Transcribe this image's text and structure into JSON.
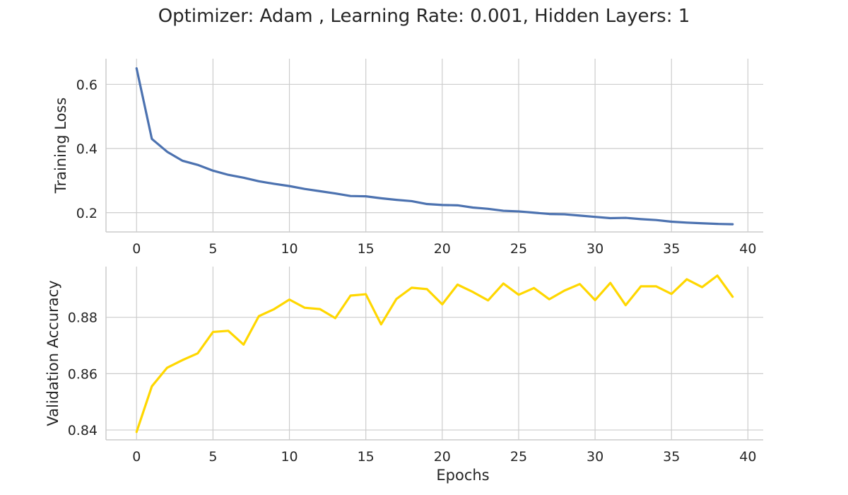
{
  "title": "Optimizer: Adam , Learning Rate: 0.001, Hidden Layers: 1",
  "colors": {
    "loss": "#4c72b0",
    "accuracy": "#ffd700"
  },
  "chart_data": [
    {
      "type": "line",
      "ylabel": "Training Loss",
      "xlabel": "",
      "xlim": [
        -2,
        41
      ],
      "ylim": [
        0.14,
        0.68
      ],
      "xticks": [
        0,
        5,
        10,
        15,
        20,
        25,
        30,
        35,
        40
      ],
      "yticks": [
        0.2,
        0.4,
        0.6
      ],
      "ytick_labels": [
        "0.2",
        "0.4",
        "0.6"
      ],
      "grid": true,
      "series": [
        {
          "x": [
            0,
            1,
            2,
            3,
            4,
            5,
            6,
            7,
            8,
            9,
            10,
            11,
            12,
            13,
            14,
            15,
            16,
            17,
            18,
            19,
            20,
            21,
            22,
            23,
            24,
            25,
            26,
            27,
            28,
            29,
            30,
            31,
            32,
            33,
            34,
            35,
            36,
            37,
            38,
            39
          ],
          "values": [
            0.65,
            0.43,
            0.39,
            0.362,
            0.349,
            0.331,
            0.318,
            0.309,
            0.298,
            0.29,
            0.283,
            0.274,
            0.267,
            0.26,
            0.252,
            0.251,
            0.245,
            0.24,
            0.236,
            0.227,
            0.224,
            0.223,
            0.216,
            0.212,
            0.206,
            0.204,
            0.2,
            0.196,
            0.195,
            0.191,
            0.187,
            0.183,
            0.184,
            0.18,
            0.177,
            0.172,
            0.169,
            0.167,
            0.165,
            0.164
          ]
        }
      ]
    },
    {
      "type": "line",
      "ylabel": "Validation Accuracy",
      "xlabel": "Epochs",
      "xlim": [
        -2,
        41
      ],
      "ylim": [
        0.8365,
        0.898
      ],
      "xticks": [
        0,
        5,
        10,
        15,
        20,
        25,
        30,
        35,
        40
      ],
      "yticks": [
        0.84,
        0.86,
        0.88
      ],
      "ytick_labels": [
        "0.84",
        "0.86",
        "0.88"
      ],
      "grid": true,
      "series": [
        {
          "x": [
            0,
            1,
            2,
            3,
            4,
            5,
            6,
            7,
            8,
            9,
            10,
            11,
            12,
            13,
            14,
            15,
            16,
            17,
            18,
            19,
            20,
            21,
            22,
            23,
            24,
            25,
            26,
            27,
            28,
            29,
            30,
            31,
            32,
            33,
            34,
            35,
            36,
            37,
            38,
            39
          ],
          "values": [
            0.8393,
            0.8555,
            0.8621,
            0.8648,
            0.8672,
            0.8748,
            0.8752,
            0.8703,
            0.8804,
            0.8829,
            0.8863,
            0.8834,
            0.8829,
            0.8797,
            0.8877,
            0.8882,
            0.8775,
            0.8865,
            0.8905,
            0.89,
            0.8846,
            0.8916,
            0.889,
            0.886,
            0.892,
            0.888,
            0.8904,
            0.8864,
            0.8895,
            0.8918,
            0.8861,
            0.8922,
            0.8843,
            0.891,
            0.891,
            0.8883,
            0.8935,
            0.8907,
            0.8948,
            0.8873
          ]
        }
      ]
    }
  ]
}
